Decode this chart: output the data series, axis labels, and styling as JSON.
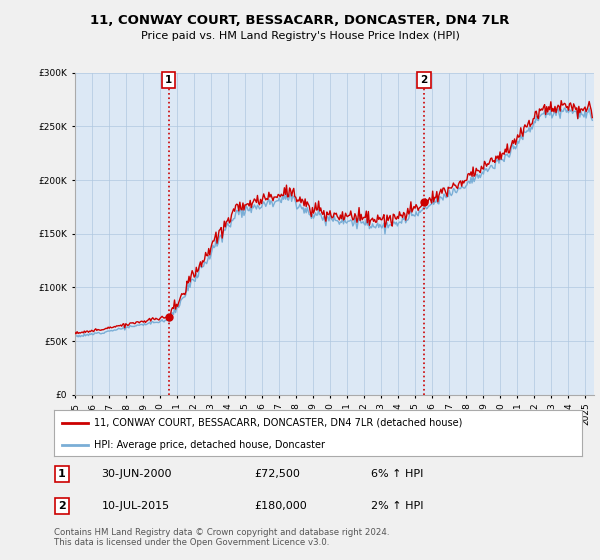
{
  "title": "11, CONWAY COURT, BESSACARR, DONCASTER, DN4 7LR",
  "subtitle": "Price paid vs. HM Land Registry's House Price Index (HPI)",
  "legend_label_red": "11, CONWAY COURT, BESSACARR, DONCASTER, DN4 7LR (detached house)",
  "legend_label_blue": "HPI: Average price, detached house, Doncaster",
  "marker1_date": "30-JUN-2000",
  "marker1_price": "£72,500",
  "marker1_hpi": "6% ↑ HPI",
  "marker2_date": "10-JUL-2015",
  "marker2_price": "£180,000",
  "marker2_hpi": "2% ↑ HPI",
  "footnote": "Contains HM Land Registry data © Crown copyright and database right 2024.\nThis data is licensed under the Open Government Licence v3.0.",
  "xlim_start": 1995.0,
  "xlim_end": 2025.5,
  "ylim_bottom": 0,
  "ylim_top": 300000,
  "bg_color": "#f0f0f0",
  "plot_bg_color": "#dce8f5",
  "red_color": "#cc0000",
  "blue_color": "#7aaed6",
  "marker1_x": 2000.5,
  "marker2_x": 2015.52,
  "marker1_y": 72500,
  "marker2_y": 180000,
  "yticks": [
    0,
    50000,
    100000,
    150000,
    200000,
    250000,
    300000
  ]
}
